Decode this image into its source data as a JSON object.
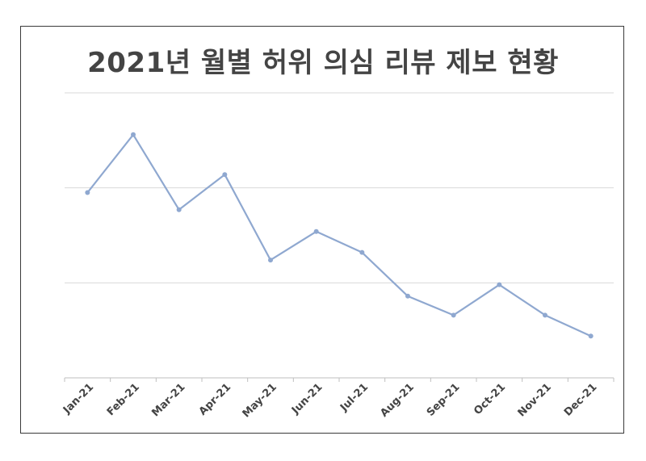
{
  "chart_data": {
    "type": "line",
    "title": "2021년 월별 허위 의심 리뷰 제보 현황",
    "categories": [
      "Jan-21",
      "Feb-21",
      "Mar-21",
      "Apr-21",
      "May-21",
      "Jun-21",
      "Jul-21",
      "Aug-21",
      "Sep-21",
      "Oct-21",
      "Nov-21",
      "Dec-21"
    ],
    "series": [
      {
        "values": [
          1.95,
          2.56,
          1.77,
          2.14,
          1.24,
          1.54,
          1.32,
          0.86,
          0.66,
          0.98,
          0.66,
          0.44
        ]
      }
    ],
    "ylim": [
      0,
      3
    ],
    "grid": true,
    "colors": {
      "line": "#8fa8d0",
      "grid": "#d9d9d9",
      "axis": "#bfbfbf",
      "text": "#444444"
    }
  }
}
